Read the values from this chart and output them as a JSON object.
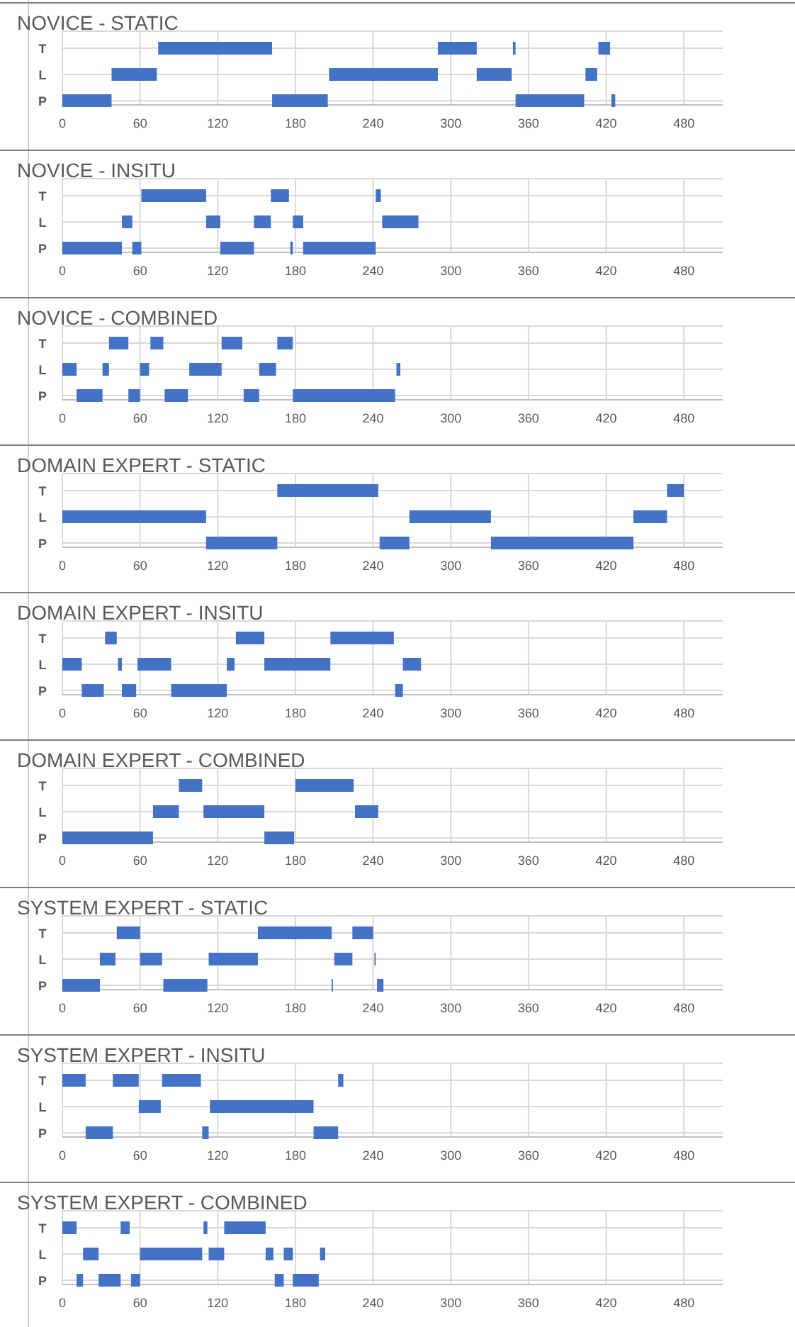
{
  "chart_data": [
    {
      "type": "bar",
      "orientation": "horizontal",
      "title": "NOVICE - STATIC",
      "categories": [
        "T",
        "L",
        "P"
      ],
      "xlim": [
        0,
        510
      ],
      "xticks": [
        0,
        60,
        120,
        180,
        240,
        300,
        360,
        420,
        480
      ],
      "grid": true,
      "series": [
        {
          "color": "#4472c4",
          "base": [
            74,
            38,
            0
          ],
          "values": [
            88,
            35,
            38
          ]
        },
        {
          "color": "#4472c4",
          "base": [
            290,
            206,
            162
          ],
          "values": [
            30,
            84,
            43
          ]
        },
        {
          "color": "#4472c4",
          "base": [
            348,
            320,
            350
          ],
          "values": [
            2,
            27,
            53
          ]
        },
        {
          "color": "#4472c4",
          "base": [
            414,
            404,
            424
          ],
          "values": [
            9,
            9,
            3
          ]
        }
      ]
    },
    {
      "type": "bar",
      "orientation": "horizontal",
      "title": "NOVICE - INSITU",
      "categories": [
        "T",
        "L",
        "P"
      ],
      "xlim": [
        0,
        510
      ],
      "xticks": [
        0,
        60,
        120,
        180,
        240,
        300,
        360,
        420,
        480
      ],
      "grid": true,
      "series": [
        {
          "color": "#4472c4",
          "base": [
            61,
            46,
            0
          ],
          "values": [
            50,
            8,
            46
          ]
        },
        {
          "color": "#4472c4",
          "base": [
            161,
            111,
            54
          ],
          "values": [
            14,
            11,
            7
          ]
        },
        {
          "color": "#4472c4",
          "base": [
            242,
            148,
            122
          ],
          "values": [
            4,
            13,
            26
          ]
        },
        {
          "color": "#4472c4",
          "base": [
            null,
            178,
            176
          ],
          "values": [
            null,
            8,
            2
          ]
        },
        {
          "color": "#4472c4",
          "base": [
            null,
            247,
            186
          ],
          "values": [
            null,
            28,
            56
          ]
        }
      ]
    },
    {
      "type": "bar",
      "orientation": "horizontal",
      "title": "NOVICE - COMBINED",
      "categories": [
        "T",
        "L",
        "P"
      ],
      "xlim": [
        0,
        510
      ],
      "xticks": [
        0,
        60,
        120,
        180,
        240,
        300,
        360,
        420,
        480
      ],
      "grid": true,
      "series": [
        {
          "color": "#4472c4",
          "base": [
            36,
            0,
            11
          ],
          "values": [
            15,
            11,
            20
          ]
        },
        {
          "color": "#4472c4",
          "base": [
            68,
            31,
            51
          ],
          "values": [
            10,
            5,
            9
          ]
        },
        {
          "color": "#4472c4",
          "base": [
            123,
            60,
            79
          ],
          "values": [
            16,
            7,
            18
          ]
        },
        {
          "color": "#4472c4",
          "base": [
            166,
            98,
            140
          ],
          "values": [
            12,
            25,
            12
          ]
        },
        {
          "color": "#4472c4",
          "base": [
            null,
            152,
            178
          ],
          "values": [
            null,
            13,
            79
          ]
        },
        {
          "color": "#4472c4",
          "base": [
            null,
            258,
            null
          ],
          "values": [
            null,
            3,
            null
          ]
        }
      ]
    },
    {
      "type": "bar",
      "orientation": "horizontal",
      "title": "DOMAIN EXPERT - STATIC",
      "categories": [
        "T",
        "L",
        "P"
      ],
      "xlim": [
        0,
        510
      ],
      "xticks": [
        0,
        60,
        120,
        180,
        240,
        300,
        360,
        420,
        480
      ],
      "grid": true,
      "series": [
        {
          "color": "#4472c4",
          "base": [
            166,
            0,
            111
          ],
          "values": [
            78,
            111,
            55
          ]
        },
        {
          "color": "#4472c4",
          "base": [
            467,
            268,
            245
          ],
          "values": [
            13,
            63,
            23
          ]
        },
        {
          "color": "#4472c4",
          "base": [
            null,
            441,
            331
          ],
          "values": [
            null,
            26,
            110
          ]
        }
      ]
    },
    {
      "type": "bar",
      "orientation": "horizontal",
      "title": "DOMAIN EXPERT - INSITU",
      "categories": [
        "T",
        "L",
        "P"
      ],
      "xlim": [
        0,
        510
      ],
      "xticks": [
        0,
        60,
        120,
        180,
        240,
        300,
        360,
        420,
        480
      ],
      "grid": true,
      "series": [
        {
          "color": "#4472c4",
          "base": [
            33,
            0,
            15
          ],
          "values": [
            9,
            15,
            17
          ]
        },
        {
          "color": "#4472c4",
          "base": [
            134,
            43,
            46
          ],
          "values": [
            22,
            3,
            11
          ]
        },
        {
          "color": "#4472c4",
          "base": [
            207,
            58,
            84
          ],
          "values": [
            49,
            26,
            43
          ]
        },
        {
          "color": "#4472c4",
          "base": [
            null,
            127,
            257
          ],
          "values": [
            null,
            6,
            6
          ]
        },
        {
          "color": "#4472c4",
          "base": [
            null,
            156,
            null
          ],
          "values": [
            null,
            51,
            null
          ]
        },
        {
          "color": "#4472c4",
          "base": [
            null,
            263,
            null
          ],
          "values": [
            null,
            14,
            null
          ]
        }
      ]
    },
    {
      "type": "bar",
      "orientation": "horizontal",
      "title": "DOMAIN EXPERT - COMBINED",
      "categories": [
        "T",
        "L",
        "P"
      ],
      "xlim": [
        0,
        510
      ],
      "xticks": [
        0,
        60,
        120,
        180,
        240,
        300,
        360,
        420,
        480
      ],
      "grid": true,
      "series": [
        {
          "color": "#4472c4",
          "base": [
            90,
            70,
            0
          ],
          "values": [
            18,
            20,
            70
          ]
        },
        {
          "color": "#4472c4",
          "base": [
            180,
            109,
            156
          ],
          "values": [
            45,
            47,
            23
          ]
        },
        {
          "color": "#4472c4",
          "base": [
            null,
            226,
            null
          ],
          "values": [
            null,
            18,
            null
          ]
        }
      ]
    },
    {
      "type": "bar",
      "orientation": "horizontal",
      "title": "SYSTEM EXPERT - STATIC",
      "categories": [
        "T",
        "L",
        "P"
      ],
      "xlim": [
        0,
        510
      ],
      "xticks": [
        0,
        60,
        120,
        180,
        240,
        300,
        360,
        420,
        480
      ],
      "grid": true,
      "series": [
        {
          "color": "#4472c4",
          "base": [
            42,
            29,
            0
          ],
          "values": [
            18,
            12,
            29
          ]
        },
        {
          "color": "#4472c4",
          "base": [
            151,
            60,
            78
          ],
          "values": [
            57,
            17,
            34
          ]
        },
        {
          "color": "#4472c4",
          "base": [
            224,
            113,
            208
          ],
          "values": [
            16,
            38,
            1
          ]
        },
        {
          "color": "#4472c4",
          "base": [
            null,
            210,
            243
          ],
          "values": [
            null,
            14,
            5
          ]
        },
        {
          "color": "#4472c4",
          "base": [
            null,
            241,
            null
          ],
          "values": [
            null,
            1,
            null
          ]
        }
      ]
    },
    {
      "type": "bar",
      "orientation": "horizontal",
      "title": "SYSTEM EXPERT - INSITU",
      "categories": [
        "T",
        "L",
        "P"
      ],
      "xlim": [
        0,
        510
      ],
      "xticks": [
        0,
        60,
        120,
        180,
        240,
        300,
        360,
        420,
        480
      ],
      "grid": true,
      "series": [
        {
          "color": "#4472c4",
          "base": [
            0,
            59,
            18
          ],
          "values": [
            18,
            17,
            21
          ]
        },
        {
          "color": "#4472c4",
          "base": [
            39,
            114,
            108
          ],
          "values": [
            20,
            80,
            5
          ]
        },
        {
          "color": "#4472c4",
          "base": [
            77,
            null,
            194
          ],
          "values": [
            30,
            null,
            19
          ]
        },
        {
          "color": "#4472c4",
          "base": [
            213,
            null,
            null
          ],
          "values": [
            4,
            null,
            null
          ]
        }
      ]
    },
    {
      "type": "bar",
      "orientation": "horizontal",
      "title": "SYSTEM EXPERT - COMBINED",
      "categories": [
        "T",
        "L",
        "P"
      ],
      "xlim": [
        0,
        510
      ],
      "xticks": [
        0,
        60,
        120,
        180,
        240,
        300,
        360,
        420,
        480
      ],
      "grid": true,
      "series": [
        {
          "color": "#4472c4",
          "base": [
            0,
            16,
            11
          ],
          "values": [
            11,
            12,
            5
          ]
        },
        {
          "color": "#4472c4",
          "base": [
            45,
            60,
            28
          ],
          "values": [
            7,
            48,
            17
          ]
        },
        {
          "color": "#4472c4",
          "base": [
            109,
            113,
            53
          ],
          "values": [
            3,
            12,
            7
          ]
        },
        {
          "color": "#4472c4",
          "base": [
            125,
            157,
            164
          ],
          "values": [
            32,
            6,
            7
          ]
        },
        {
          "color": "#4472c4",
          "base": [
            null,
            171,
            178
          ],
          "values": [
            null,
            7,
            20
          ]
        },
        {
          "color": "#4472c4",
          "base": [
            null,
            199,
            null
          ],
          "values": [
            null,
            4,
            null
          ]
        }
      ]
    }
  ]
}
